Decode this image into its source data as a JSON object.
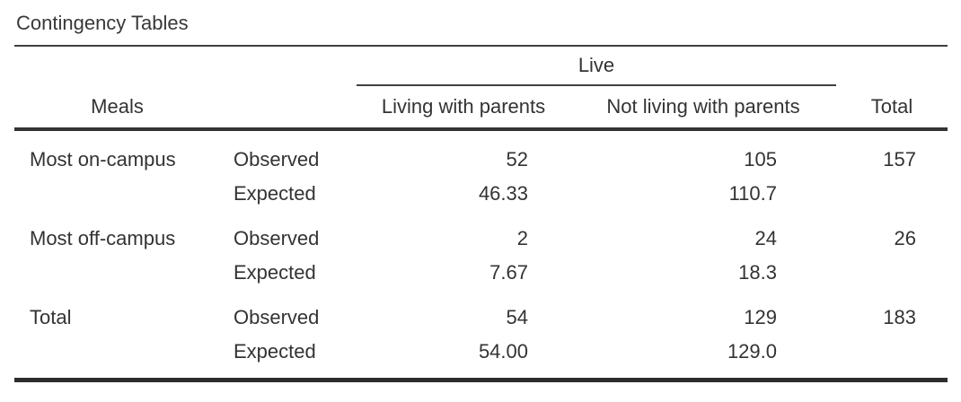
{
  "title": "Contingency Tables",
  "table": {
    "row_variable": "Meals",
    "column_variable": "Live",
    "column_headers": {
      "living": "Living with parents",
      "not_living": "Not living with parents",
      "total": "Total"
    },
    "stat_labels": {
      "observed": "Observed",
      "expected": "Expected"
    },
    "rows": [
      {
        "label": "Most on-campus",
        "stat": "Observed",
        "living": "52",
        "not_living": "105",
        "total": "157"
      },
      {
        "label": "",
        "stat": "Expected",
        "living": "46.33",
        "not_living": "110.7",
        "total": ""
      },
      {
        "label": "Most off-campus",
        "stat": "Observed",
        "living": "2",
        "not_living": "24",
        "total": "26"
      },
      {
        "label": "",
        "stat": "Expected",
        "living": "7.67",
        "not_living": "18.3",
        "total": ""
      },
      {
        "label": "Total",
        "stat": "Observed",
        "living": "54",
        "not_living": "129",
        "total": "183"
      },
      {
        "label": "",
        "stat": "Expected",
        "living": "54.00",
        "not_living": "129.0",
        "total": ""
      }
    ],
    "colors": {
      "text": "#333333",
      "thin_rule": "#404040",
      "header_rule": "#333333",
      "bottom_rule": "#2d2d2d",
      "background": "#ffffff"
    }
  }
}
